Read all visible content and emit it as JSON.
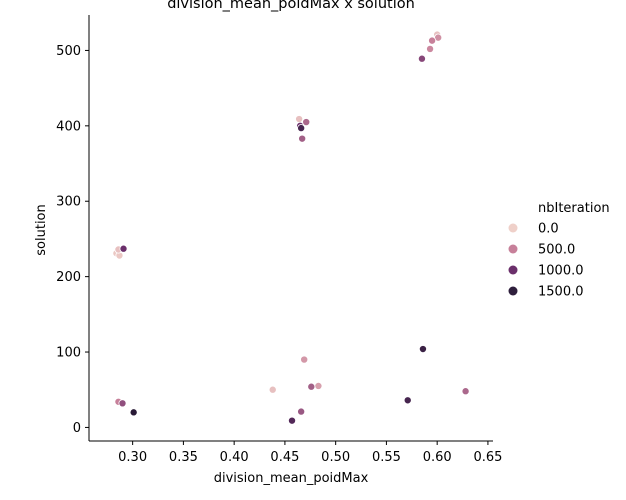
{
  "chart_data": {
    "type": "scatter",
    "title": "division_mean_poidMax x solution",
    "xlabel": "division_mean_poidMax",
    "ylabel": "solution",
    "xlim": [
      0.257,
      0.655
    ],
    "ylim": [
      -18,
      547
    ],
    "xticks": [
      "0.30",
      "0.35",
      "0.40",
      "0.45",
      "0.50",
      "0.55",
      "0.60",
      "0.65"
    ],
    "xtick_values": [
      0.3,
      0.35,
      0.4,
      0.45,
      0.5,
      0.55,
      0.6,
      0.65
    ],
    "yticks": [
      "0",
      "100",
      "200",
      "300",
      "400",
      "500"
    ],
    "ytick_values": [
      0,
      100,
      200,
      300,
      400,
      500
    ],
    "grid": false,
    "legend": {
      "title": "nbIteration",
      "placement": "right",
      "entries": [
        {
          "label": "0.0",
          "color": "#efd0c9"
        },
        {
          "label": "500.0",
          "color": "#c7809a"
        },
        {
          "label": "1000.0",
          "color": "#6b2f6b"
        },
        {
          "label": "1500.0",
          "color": "#2e1e3c"
        }
      ]
    },
    "points": [
      {
        "x": 0.6,
        "y": 521,
        "hue": 100
      },
      {
        "x": 0.601,
        "y": 517,
        "hue": 400
      },
      {
        "x": 0.595,
        "y": 513,
        "hue": 500
      },
      {
        "x": 0.593,
        "y": 502,
        "hue": 450
      },
      {
        "x": 0.585,
        "y": 489,
        "hue": 850
      },
      {
        "x": 0.464,
        "y": 409,
        "hue": 100
      },
      {
        "x": 0.471,
        "y": 405,
        "hue": 650
      },
      {
        "x": 0.465,
        "y": 400,
        "hue": 1000
      },
      {
        "x": 0.466,
        "y": 397,
        "hue": 1300
      },
      {
        "x": 0.467,
        "y": 383,
        "hue": 700
      },
      {
        "x": 0.284,
        "y": 231,
        "hue": 50
      },
      {
        "x": 0.287,
        "y": 228,
        "hue": 50
      },
      {
        "x": 0.286,
        "y": 236,
        "hue": 100
      },
      {
        "x": 0.291,
        "y": 237,
        "hue": 1000
      },
      {
        "x": 0.586,
        "y": 104,
        "hue": 1400
      },
      {
        "x": 0.469,
        "y": 90,
        "hue": 350
      },
      {
        "x": 0.483,
        "y": 55,
        "hue": 300
      },
      {
        "x": 0.476,
        "y": 54,
        "hue": 700
      },
      {
        "x": 0.438,
        "y": 50,
        "hue": 100
      },
      {
        "x": 0.628,
        "y": 48,
        "hue": 650
      },
      {
        "x": 0.571,
        "y": 36,
        "hue": 1300
      },
      {
        "x": 0.286,
        "y": 34,
        "hue": 500
      },
      {
        "x": 0.29,
        "y": 32,
        "hue": 800
      },
      {
        "x": 0.301,
        "y": 20,
        "hue": 1600
      },
      {
        "x": 0.466,
        "y": 21,
        "hue": 750
      },
      {
        "x": 0.457,
        "y": 9,
        "hue": 1200
      }
    ]
  }
}
